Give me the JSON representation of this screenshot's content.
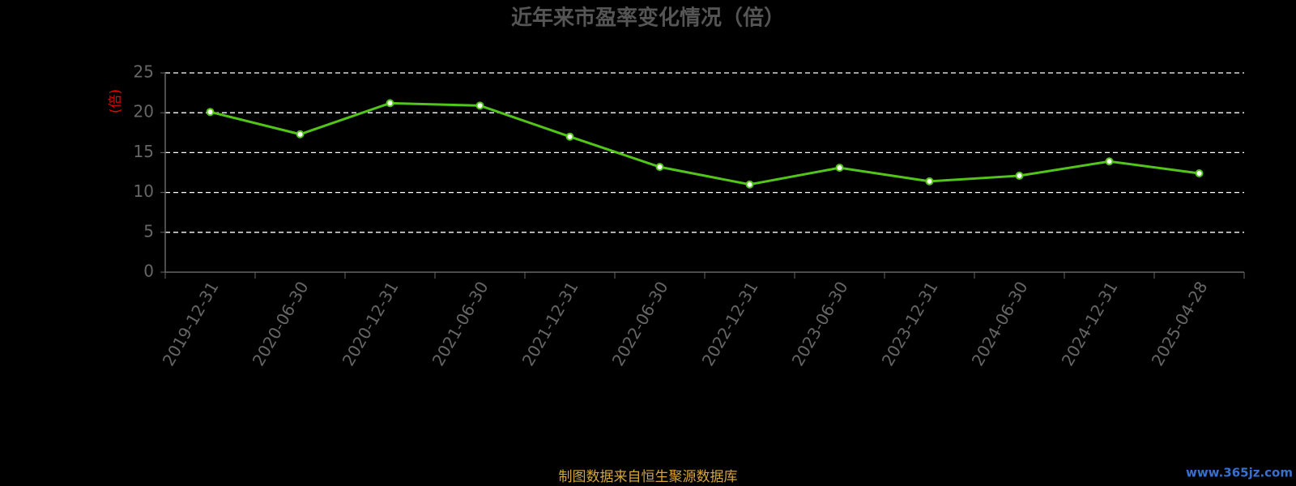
{
  "chart_data": {
    "type": "line",
    "title": "近年来市盈率变化情况（倍）",
    "y_label": "(倍)",
    "categories": [
      "2019-12-31",
      "2020-06-30",
      "2020-12-31",
      "2021-06-30",
      "2021-12-31",
      "2022-06-30",
      "2022-12-31",
      "2023-06-30",
      "2023-12-31",
      "2024-06-30",
      "2024-12-31",
      "2025-04-28"
    ],
    "series": [
      {
        "color": "#52c41a",
        "values": [
          20.1,
          17.3,
          21.2,
          20.9,
          17.0,
          13.2,
          11.0,
          13.1,
          11.4,
          12.1,
          13.9,
          12.4
        ]
      }
    ],
    "ylim": [
      0,
      25
    ],
    "yticks": [
      0,
      5,
      10,
      15,
      20,
      25
    ],
    "grid": true
  },
  "source": "制图数据来自恒生聚源数据库",
  "watermark": "www.365jz.com"
}
